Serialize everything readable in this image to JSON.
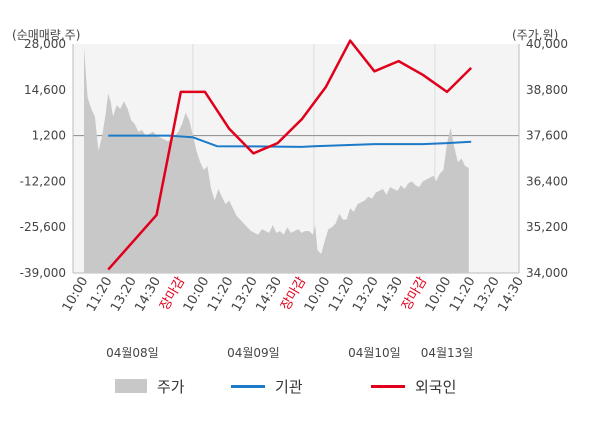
{
  "chart_data": {
    "type": "line",
    "y_left_label": "(순매매량,주)",
    "y_right_label": "(주가,원)",
    "y_left_ticks": [
      "28,000",
      "14,600",
      "1,200",
      "-12,200",
      "-25,600",
      "-39,000"
    ],
    "y_right_ticks": [
      "40,000",
      "38,800",
      "37,600",
      "36,400",
      "35,200",
      "34,000"
    ],
    "ylim_left": [
      -39000,
      28000
    ],
    "ylim_right": [
      34000,
      40000
    ],
    "x_ticks": [
      {
        "label": "10:00",
        "close": false
      },
      {
        "label": "11:20",
        "close": false
      },
      {
        "label": "13:20",
        "close": false
      },
      {
        "label": "14:30",
        "close": false
      },
      {
        "label": "장마감",
        "close": true
      },
      {
        "label": "10:00",
        "close": false
      },
      {
        "label": "11:20",
        "close": false
      },
      {
        "label": "13:20",
        "close": false
      },
      {
        "label": "14:30",
        "close": false
      },
      {
        "label": "장마감",
        "close": true
      },
      {
        "label": "10:00",
        "close": false
      },
      {
        "label": "11:20",
        "close": false
      },
      {
        "label": "13:20",
        "close": false
      },
      {
        "label": "14:30",
        "close": false
      },
      {
        "label": "장마감",
        "close": true
      },
      {
        "label": "10:00",
        "close": false
      },
      {
        "label": "11:20",
        "close": false
      },
      {
        "label": "13:20",
        "close": false
      },
      {
        "label": "14:30",
        "close": false
      }
    ],
    "dates": [
      {
        "label": "04월08일",
        "at_tick": 2
      },
      {
        "label": "04월09일",
        "at_tick": 7
      },
      {
        "label": "04월10일",
        "at_tick": 12
      },
      {
        "label": "04월13일",
        "at_tick": 15
      }
    ],
    "day_boundaries_at_tick": [
      4.5,
      9.5,
      14.5
    ],
    "series": [
      {
        "name": "주가",
        "axis": "right",
        "kind": "area",
        "color": "#c8c8c8",
        "x": [
          0,
          0.15,
          0.3,
          0.45,
          0.6,
          0.75,
          0.9,
          1.0,
          1.1,
          1.2,
          1.35,
          1.5,
          1.65,
          1.8,
          1.95,
          2.1,
          2.25,
          2.4,
          2.55,
          2.7,
          2.85,
          3.0,
          3.15,
          3.3,
          3.45,
          3.6,
          3.75,
          3.9,
          4.05,
          4.2,
          4.35,
          4.5,
          4.65,
          4.8,
          4.95,
          5.1,
          5.25,
          5.4,
          5.55,
          5.7,
          5.85,
          6.0,
          6.15,
          6.3,
          6.45,
          6.6,
          6.75,
          6.9,
          7.05,
          7.2,
          7.35,
          7.5,
          7.65,
          7.8,
          7.95,
          8.1,
          8.25,
          8.4,
          8.55,
          8.7,
          8.85,
          9.0,
          9.15,
          9.3,
          9.45,
          9.55,
          9.65,
          9.8,
          9.95,
          10.1,
          10.25,
          10.4,
          10.55,
          10.7,
          10.85,
          11.0,
          11.15,
          11.3,
          11.45,
          11.6,
          11.75,
          11.9,
          12.05,
          12.2,
          12.35,
          12.5,
          12.65,
          12.8,
          12.95,
          13.1,
          13.25,
          13.4,
          13.55,
          13.7,
          13.85,
          14.0,
          14.15,
          14.3,
          14.45,
          14.55,
          14.7,
          14.85,
          15.0,
          15.15,
          15.3,
          15.45,
          15.6,
          15.75,
          15.9
        ],
        "values": [
          39900,
          38600,
          38300,
          38100,
          37200,
          37600,
          38200,
          38700,
          38500,
          38100,
          38400,
          38300,
          38500,
          38300,
          38000,
          37900,
          37700,
          37750,
          37600,
          37650,
          37700,
          37600,
          37550,
          37500,
          37450,
          37500,
          37600,
          37700,
          37900,
          38200,
          38000,
          37600,
          37200,
          36900,
          36700,
          36800,
          36200,
          35900,
          36200,
          36000,
          35800,
          35900,
          35700,
          35500,
          35400,
          35300,
          35200,
          35100,
          35050,
          35000,
          35150,
          35100,
          35050,
          35250,
          35050,
          35100,
          35000,
          35200,
          35050,
          35100,
          35150,
          35050,
          35100,
          35100,
          35000,
          35250,
          34600,
          34500,
          34850,
          35150,
          35200,
          35300,
          35550,
          35400,
          35400,
          35700,
          35600,
          35800,
          35850,
          35900,
          36000,
          35950,
          36100,
          36150,
          36200,
          36050,
          36250,
          36200,
          36150,
          36300,
          36200,
          36350,
          36400,
          36300,
          36250,
          36400,
          36450,
          36500,
          36550,
          36400,
          36600,
          36700,
          37400,
          37800,
          37300,
          36900,
          37000,
          36800,
          36750
        ]
      },
      {
        "name": "기관",
        "axis": "left",
        "kind": "line",
        "color": "#1c7ac9",
        "x": [
          1.0,
          3.5,
          4.5,
          5.5,
          7.5,
          9.0,
          9.5,
          12.0,
          14.0,
          15.0,
          16.0
        ],
        "values": [
          1200,
          1200,
          700,
          -1900,
          -2000,
          -2100,
          -1900,
          -1300,
          -1300,
          -1000,
          -600
        ]
      },
      {
        "name": "외국인",
        "axis": "left",
        "kind": "line",
        "color": "#e0001b",
        "x": [
          1.0,
          3.0,
          4.0,
          5.0,
          6.0,
          7.0,
          8.0,
          9.0,
          10.0,
          11.0,
          12.0,
          13.0,
          14.0,
          15.0,
          16.0
        ],
        "values": [
          -38000,
          -22000,
          14000,
          14000,
          3200,
          -4000,
          -1000,
          6000,
          15500,
          29000,
          20000,
          23000,
          19000,
          14000,
          21000
        ]
      }
    ],
    "legend": {
      "placement": "bottom"
    }
  },
  "legend_labels": {
    "price": "주가",
    "institution": "기관",
    "foreign": "외국인"
  },
  "colors": {
    "price": "#c8c8c8",
    "institution": "#1c7ac9",
    "foreign": "#e0001b",
    "close": "#e0001b"
  }
}
